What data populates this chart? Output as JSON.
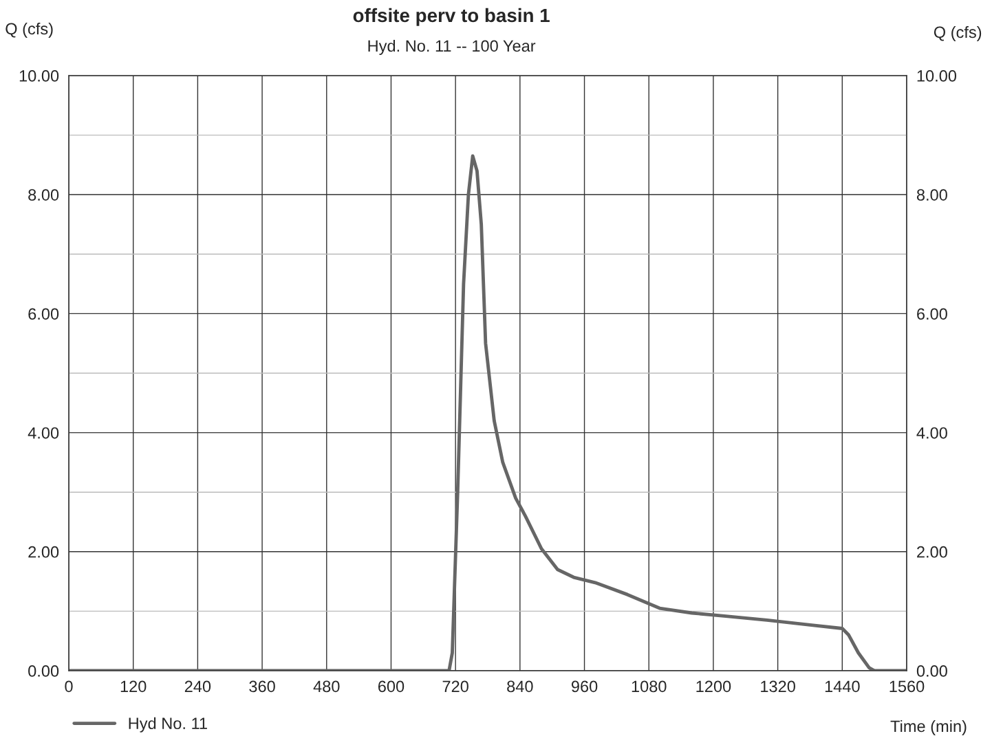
{
  "chart_data": {
    "type": "line",
    "title": "offsite perv to basin 1",
    "subtitle": "Hyd. No. 11 -- 100 Year",
    "ylabel": "Q (cfs)",
    "y2label": "Q (cfs)",
    "xlabel": "Time (min)",
    "x": [
      0,
      708,
      714,
      724,
      735,
      744,
      752,
      760,
      768,
      776,
      792,
      808,
      832,
      850,
      880,
      910,
      940,
      980,
      1040,
      1100,
      1160,
      1220,
      1300,
      1380,
      1440,
      1452,
      1470,
      1490,
      1500,
      1560
    ],
    "series": [
      {
        "name": "Hyd No. 11",
        "color": "#666666",
        "values": [
          0,
          0,
          0.3,
          3.0,
          6.5,
          8.0,
          8.65,
          8.4,
          7.5,
          5.5,
          4.2,
          3.5,
          2.9,
          2.6,
          2.05,
          1.7,
          1.57,
          1.48,
          1.28,
          1.05,
          0.97,
          0.92,
          0.85,
          0.77,
          0.71,
          0.6,
          0.3,
          0.05,
          0,
          0
        ]
      }
    ],
    "xlim": [
      0,
      1560
    ],
    "xticks": [
      0,
      120,
      240,
      360,
      480,
      600,
      720,
      840,
      960,
      1080,
      1200,
      1320,
      1440,
      1560
    ],
    "ylim": [
      0,
      10
    ],
    "yticks": [
      {
        "value": 0,
        "label": "0.00"
      },
      {
        "value": 1,
        "label": null
      },
      {
        "value": 2,
        "label": "2.00"
      },
      {
        "value": 3,
        "label": null
      },
      {
        "value": 4,
        "label": "4.00"
      },
      {
        "value": 5,
        "label": null
      },
      {
        "value": 6,
        "label": "6.00"
      },
      {
        "value": 7,
        "label": null
      },
      {
        "value": 8,
        "label": "8.00"
      },
      {
        "value": 9,
        "label": null
      },
      {
        "value": 10,
        "label": "10.00"
      }
    ],
    "y2lim": [
      0,
      10
    ],
    "y2ticks": [
      {
        "value": 0,
        "label": "0.00"
      },
      {
        "value": 2,
        "label": "2.00"
      },
      {
        "value": 4,
        "label": "4.00"
      },
      {
        "value": 6,
        "label": "6.00"
      },
      {
        "value": 8,
        "label": "8.00"
      },
      {
        "value": 10,
        "label": "10.00"
      }
    ],
    "grid": true,
    "legend": "bottom left",
    "line_style": "solid",
    "marker": "none"
  }
}
